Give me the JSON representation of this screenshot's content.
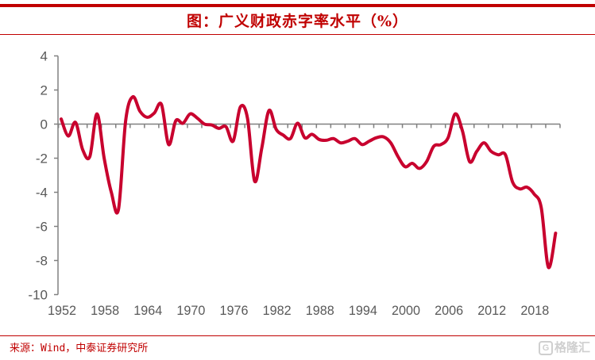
{
  "title": "图：广义财政赤字率水平（%）",
  "source": "来源：Wind，中泰证券研究所",
  "watermark": "格隆汇",
  "colors": {
    "line": "#c8002e",
    "accent": "#c00000",
    "axis": "#808080",
    "label": "#595959"
  },
  "chart_data": {
    "type": "line",
    "title": "图：广义财政赤字率水平（%）",
    "xlabel": "",
    "ylabel": "",
    "ylim": [
      -10,
      4
    ],
    "yticks": [
      4,
      2,
      0,
      -2,
      -4,
      -6,
      -8,
      -10
    ],
    "xtick_labels": [
      "1952",
      "1958",
      "1964",
      "1970",
      "1976",
      "1982",
      "1988",
      "1994",
      "2000",
      "2006",
      "2012",
      "2018"
    ],
    "grid": false,
    "legend": "none",
    "x": [
      1952,
      1953,
      1954,
      1955,
      1956,
      1957,
      1958,
      1959,
      1960,
      1961,
      1962,
      1963,
      1964,
      1965,
      1966,
      1967,
      1968,
      1969,
      1970,
      1971,
      1972,
      1973,
      1974,
      1975,
      1976,
      1977,
      1978,
      1979,
      1980,
      1981,
      1982,
      1983,
      1984,
      1985,
      1986,
      1987,
      1988,
      1989,
      1990,
      1991,
      1992,
      1993,
      1994,
      1995,
      1996,
      1997,
      1998,
      1999,
      2000,
      2001,
      2002,
      2003,
      2004,
      2005,
      2006,
      2007,
      2008,
      2009,
      2010,
      2011,
      2012,
      2013,
      2014,
      2015,
      2016,
      2017,
      2018,
      2019,
      2020,
      2021
    ],
    "series": [
      {
        "name": "广义财政赤字率",
        "values": [
          0.3,
          -0.7,
          0.1,
          -1.5,
          -1.9,
          0.6,
          -2.0,
          -4.0,
          -5.0,
          0.2,
          1.6,
          0.75,
          0.4,
          0.65,
          1.15,
          -1.2,
          0.2,
          0.05,
          0.6,
          0.35,
          0.0,
          -0.05,
          -0.25,
          -0.15,
          -1.0,
          1.0,
          0.35,
          -3.35,
          -1.4,
          0.8,
          -0.3,
          -0.65,
          -0.85,
          0.05,
          -0.8,
          -0.6,
          -0.9,
          -0.95,
          -0.85,
          -1.1,
          -1.0,
          -0.85,
          -1.2,
          -1.0,
          -0.8,
          -0.75,
          -1.1,
          -1.9,
          -2.5,
          -2.3,
          -2.6,
          -2.2,
          -1.3,
          -1.2,
          -0.8,
          0.6,
          -0.4,
          -2.2,
          -1.6,
          -1.1,
          -1.6,
          -1.8,
          -1.8,
          -3.4,
          -3.8,
          -3.7,
          -4.1,
          -4.9,
          -8.4,
          -6.4
        ]
      }
    ]
  }
}
